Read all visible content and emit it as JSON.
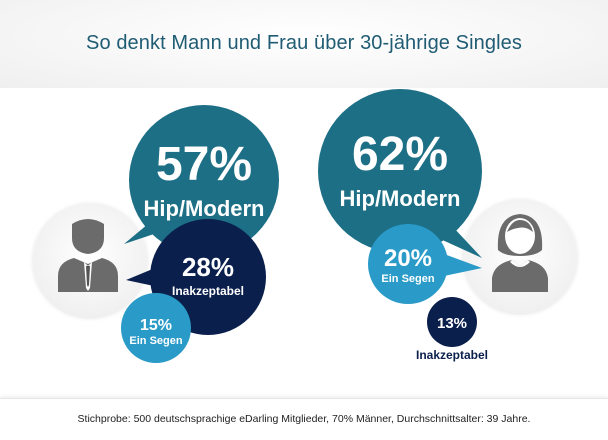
{
  "title": "So denkt Mann und Frau über 30-jährige Singles",
  "footer": "Stichprobe: 500 deutschsprachige eDarling Mitglieder, 70% Männer, Durchschnittsalter: 39 Jahre.",
  "colors": {
    "big": "#1d6f86",
    "mid": "#0b1f4d",
    "small": "#2a9bc8",
    "title": "#1f5c73",
    "avatar": "#6b6b6b"
  },
  "chart_data": [
    {
      "type": "pie",
      "group": "Männer",
      "icon": "man-avatar-icon",
      "categories": [
        "Hip/Modern",
        "Inakzeptabel",
        "Ein Segen"
      ],
      "values": [
        57,
        28,
        15
      ],
      "labels": [
        "57%",
        "28%",
        "15%"
      ]
    },
    {
      "type": "pie",
      "group": "Frauen",
      "icon": "woman-avatar-icon",
      "categories": [
        "Hip/Modern",
        "Ein Segen",
        "Inakzeptabel"
      ],
      "values": [
        62,
        20,
        13
      ],
      "labels": [
        "62%",
        "20%",
        "13%"
      ]
    }
  ]
}
